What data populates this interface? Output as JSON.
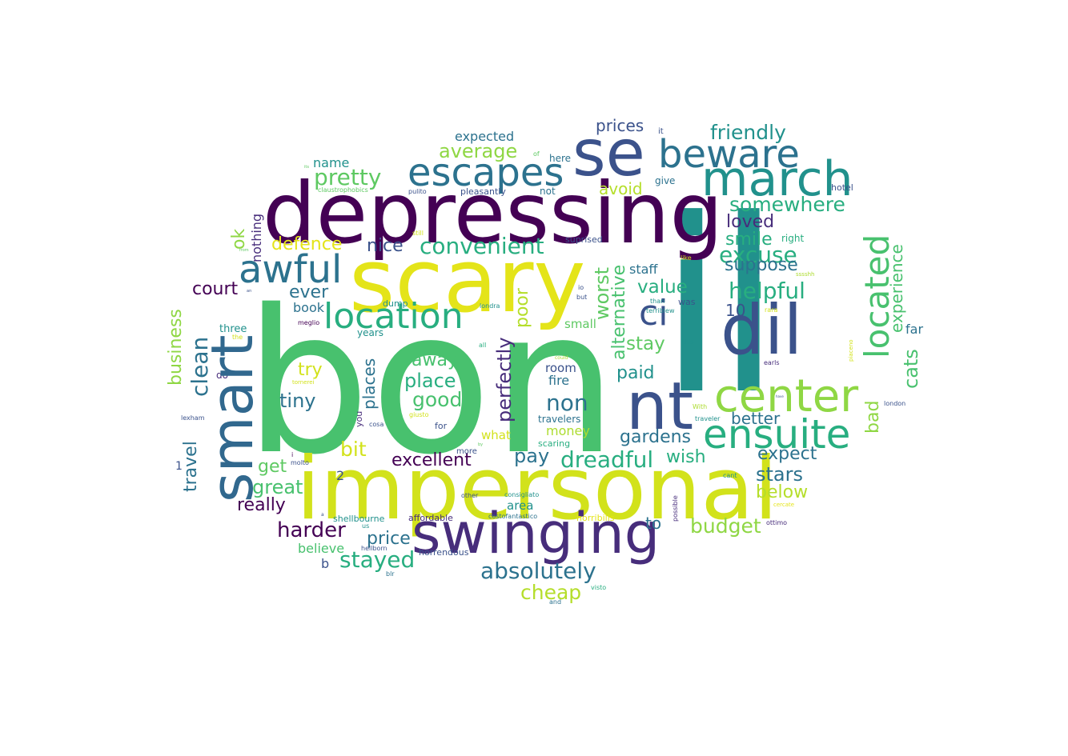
{
  "colors": {
    "c1": "#440154",
    "c2": "#472d7b",
    "c3": "#3b528b",
    "c4": "#2c728e",
    "c5": "#21918c",
    "c6": "#28ae80",
    "c7": "#5ec962",
    "c8": "#addc30",
    "c9": "#fde725",
    "c10": "#48c16e",
    "c11": "#d2e21b"
  },
  "words": {
    "bon": "bon",
    "il": "il",
    "impersonal": "impersonal",
    "scary": "scary",
    "depressing": "depressing",
    "smart": "smart",
    "se": "se",
    "swinging": "swinging",
    "dil": "dil",
    "nt": "nt",
    "march": "march",
    "escapes": "escapes",
    "beware": "beware",
    "center": "center",
    "ensuite": "ensuite",
    "located": "located",
    "location": "location",
    "awful": "awful",
    "ci": "ci",
    "absolutely": "absolutely",
    "pretty": "pretty",
    "convenient": "convenient",
    "dreadful": "dreadful",
    "helpful": "helpful",
    "somewhere": "somewhere",
    "friendly": "friendly",
    "excuse": "excuse",
    "stayed": "stayed",
    "harder": "harder",
    "budget": "budget",
    "average": "average",
    "cheap": "cheap",
    "place": "place",
    "smile": "smile",
    "loved": "loved",
    "suppose": "suppose",
    "value": "value",
    "stay": "stay",
    "paid": "paid",
    "gardens": "gardens",
    "stars": "stars",
    "expect": "expect",
    "below": "below",
    "better": "better",
    "wish": "wish",
    "excellent": "excellent",
    "great": "great",
    "really": "really",
    "price": "price",
    "pay": "pay",
    "bit": "bit",
    "good": "good",
    "tiny": "tiny",
    "away": "away",
    "non": "non",
    "nice": "nice",
    "defence": "defence",
    "court": "court",
    "ever": "ever",
    "try": "try",
    "get": "get",
    "prices": "prices",
    "avoid": "avoid",
    "expected": "expected",
    "name": "name",
    "book": "book",
    "three": "three",
    "believe": "believe",
    "money": "money",
    "room": "room",
    "fire": "fire",
    "travelers": "travelers",
    "small": "small",
    "staff": "staff",
    "to": "to",
    "far": "far",
    "n10": "10",
    "n2": "2",
    "b": "b",
    "area": "area",
    "what": "what",
    "give": "give",
    "hotel": "hotel",
    "right": "right",
    "here": "here",
    "not": "not",
    "suprised": "suprised",
    "pleasantly": "pleasantly",
    "claustrophobics": "claustrophobics",
    "pulito": "pulito",
    "years": "years",
    "dump": "dump",
    "londra": "londra",
    "meglio": "meglio",
    "still": "still",
    "affordable": "affordable",
    "shellbourne": "shellbourne",
    "horrendous": "horrendous",
    "hellborn": "hellborn",
    "us": "us",
    "blr": "blr",
    "and": "and",
    "visto": "visto",
    "horribilis": "horribilis",
    "costofantastico": "costofantastico",
    "consigliato": "consigliato",
    "other": "other",
    "more": "more",
    "molto": "molto",
    "scaring": "scaring",
    "cosa": "cosa",
    "for": "for",
    "giusto": "giusto",
    "terriblew": "terriblew",
    "was": "was",
    "than": "than",
    "but": "but",
    "io": "io",
    "it": "it",
    "of": "of",
    "like": "like",
    "this": "this",
    "could": "could",
    "all": "all",
    "the": "the",
    "do": "do",
    "lexham": "lexham",
    "n1": "1",
    "i": "i",
    "cant": "cant",
    "ottimo": "ottimo",
    "cercate": "cercate",
    "rara": "rara",
    "earls": "earls",
    "london": "london",
    "sssshh": "sssshh",
    "traveler": "traveler",
    "with": "With",
    "tornerei": "tornerei",
    "its": "its",
    "from": "from",
    "an": "an",
    "a": "a",
    "by": "by",
    "have": "have",
    "business": "business",
    "clean": "clean",
    "travel": "travel",
    "ok": "ok",
    "nothing": "nothing",
    "places": "places",
    "you": "you",
    "perfectly": "perfectly",
    "poor": "poor",
    "worst": "worst",
    "alternative": "alternative",
    "bad": "bad",
    "experience": "experience",
    "cats": "cats",
    "possible": "possible",
    "piaceno": "piaceno"
  }
}
